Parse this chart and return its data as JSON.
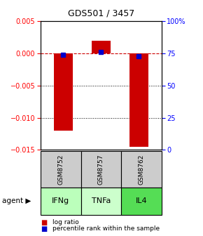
{
  "title": "GDS501 / 3457",
  "samples": [
    "GSM8752",
    "GSM8757",
    "GSM8762"
  ],
  "agents": [
    "IFNg",
    "TNFa",
    "IL4"
  ],
  "log_ratios": [
    -0.012,
    0.002,
    -0.0145
  ],
  "percentile_ranks": [
    74,
    76,
    73
  ],
  "ylim_left": [
    -0.015,
    0.005
  ],
  "ylim_right": [
    0,
    100
  ],
  "yticks_left": [
    -0.015,
    -0.01,
    -0.005,
    0,
    0.005
  ],
  "yticks_right": [
    0,
    25,
    50,
    75,
    100
  ],
  "bar_color": "#cc0000",
  "dot_color": "#0000cc",
  "agent_colors": [
    "#bbffbb",
    "#ccffcc",
    "#55dd55"
  ],
  "sample_bg": "#cccccc",
  "zero_line_color": "#cc0000",
  "bar_width": 0.5
}
